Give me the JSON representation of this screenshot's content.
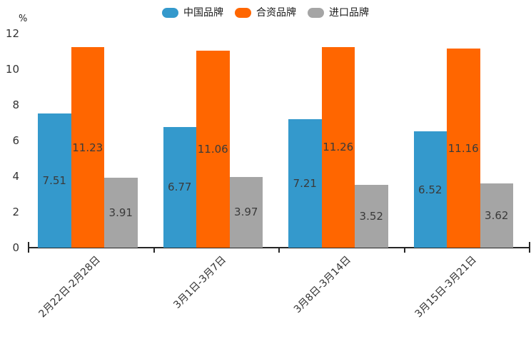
{
  "chart_data": {
    "type": "bar",
    "title": "",
    "unit_label": "%",
    "categories": [
      "2月22日-2月28日",
      "3月1日-3月7日",
      "3月8日-3月14日",
      "3月15日-3月21日"
    ],
    "series": [
      {
        "name": "中国品牌",
        "color": "#3499CC",
        "values": [
          7.51,
          6.77,
          7.21,
          6.52
        ]
      },
      {
        "name": "合资品牌",
        "color": "#FF6600",
        "values": [
          11.23,
          11.06,
          11.26,
          11.16
        ]
      },
      {
        "name": "进口品牌",
        "color": "#A5A5A5",
        "values": [
          3.91,
          3.97,
          3.52,
          3.62
        ]
      }
    ],
    "ylim": [
      0,
      12
    ],
    "yticks": [
      0,
      2,
      4,
      6,
      8,
      10,
      12
    ],
    "legend_position": "top",
    "legend_icon": "round-rect-icon",
    "grid": false,
    "value_labels": "inside-center",
    "axis_color": "#262626"
  }
}
